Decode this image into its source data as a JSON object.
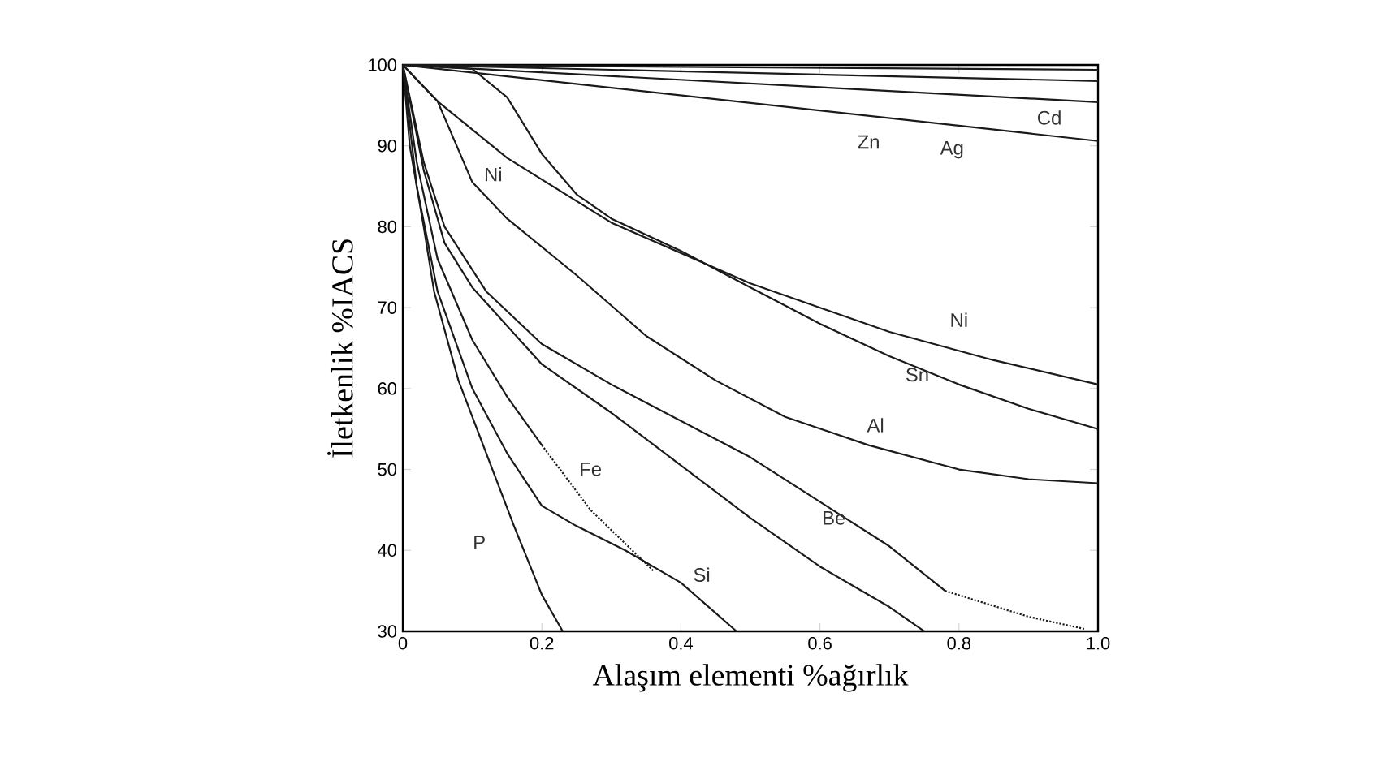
{
  "chart_data": {
    "type": "line",
    "xlabel": "Alaşım elementi %ağırlık",
    "ylabel": "İletkenlik %IACS",
    "xlim": [
      0,
      1.0
    ],
    "ylim": [
      30,
      100
    ],
    "xticks": [
      0,
      0.2,
      0.4,
      0.6,
      0.8,
      {
        "value": 1.0,
        "label": "1.0"
      }
    ],
    "yticks": [
      30,
      40,
      50,
      60,
      70,
      80,
      90,
      100
    ],
    "grid": false,
    "marker": "none",
    "series": [
      {
        "color": "#1a1a1a",
        "x": [
          0,
          1.0
        ],
        "values": [
          100,
          99.4
        ]
      },
      {
        "color": "#1a1a1a",
        "x": [
          0,
          1.0
        ],
        "values": [
          100,
          98
        ]
      },
      {
        "color": "#1a1a1a",
        "x": [
          0,
          1.0
        ],
        "values": [
          100,
          95.4
        ]
      },
      {
        "color": "#1a1a1a",
        "x": [
          0,
          1.0
        ],
        "values": [
          100,
          90.6
        ]
      },
      {
        "color": "#1a1a1a",
        "x": [
          0,
          0.05,
          0.15,
          0.3,
          0.5,
          0.7,
          0.85,
          1.0
        ],
        "values": [
          100,
          95.5,
          88.5,
          80.5,
          73,
          67,
          63.5,
          60.5
        ]
      },
      {
        "color": "#1a1a1a",
        "x": [
          0,
          0.1,
          0.15,
          0.2,
          0.25,
          0.3,
          0.4,
          0.5,
          0.6,
          0.7,
          0.8,
          0.9,
          1.0
        ],
        "values": [
          100,
          99.5,
          96,
          89,
          84,
          81,
          77,
          72.5,
          68,
          64,
          60.5,
          57.5,
          55
        ]
      },
      {
        "color": "#1a1a1a",
        "x": [
          0,
          0.05,
          0.1,
          0.15,
          0.25,
          0.35,
          0.45,
          0.55,
          0.67,
          0.8,
          0.9,
          1.0
        ],
        "values": [
          100,
          95.5,
          85.5,
          81,
          74,
          66.5,
          61,
          56.5,
          53,
          50,
          48.8,
          48.3
        ]
      },
      {
        "color": "#1a1a1a",
        "x": [
          0,
          0.03,
          0.06,
          0.12,
          0.2,
          0.3,
          0.4,
          0.5,
          0.6,
          0.7,
          0.78
        ],
        "values": [
          100,
          88,
          80,
          72,
          65.5,
          60.5,
          56,
          51.5,
          46,
          40.5,
          35
        ]
      },
      {
        "color": "#1a1a1a",
        "line_style": "dotted",
        "x": [
          0.78,
          0.9,
          0.98
        ],
        "values": [
          35,
          31.8,
          30.3
        ]
      },
      {
        "color": "#1a1a1a",
        "x": [
          0,
          0.03,
          0.06,
          0.1,
          0.2,
          0.3,
          0.4,
          0.5,
          0.6,
          0.7,
          0.75
        ],
        "values": [
          100,
          87,
          78,
          72.5,
          63,
          57,
          50.5,
          44,
          38,
          33,
          30
        ]
      },
      {
        "color": "#1a1a1a",
        "x": [
          0,
          0.02,
          0.05,
          0.1,
          0.15,
          0.2
        ],
        "values": [
          100,
          88,
          76,
          66,
          59,
          53
        ]
      },
      {
        "color": "#1a1a1a",
        "line_style": "dotted",
        "x": [
          0.2,
          0.27,
          0.36
        ],
        "values": [
          53,
          45,
          37.5
        ]
      },
      {
        "color": "#1a1a1a",
        "x": [
          0,
          0.02,
          0.05,
          0.1,
          0.15,
          0.2,
          0.25,
          0.32,
          0.4,
          0.48
        ],
        "values": [
          100,
          85,
          72,
          60,
          52,
          45.5,
          43,
          40,
          36,
          30
        ]
      },
      {
        "color": "#1a1a1a",
        "x": [
          0,
          0.01,
          0.03,
          0.045,
          0.08,
          0.12,
          0.16,
          0.2,
          0.23
        ],
        "values": [
          100,
          90,
          80,
          72,
          61,
          52,
          43,
          34.5,
          30
        ]
      }
    ],
    "annotations": [
      "P",
      "Fe",
      "Si",
      "Be",
      "Al",
      "Sn",
      "Ni",
      "Ni",
      "Zn",
      "Ag",
      "Cd"
    ]
  }
}
